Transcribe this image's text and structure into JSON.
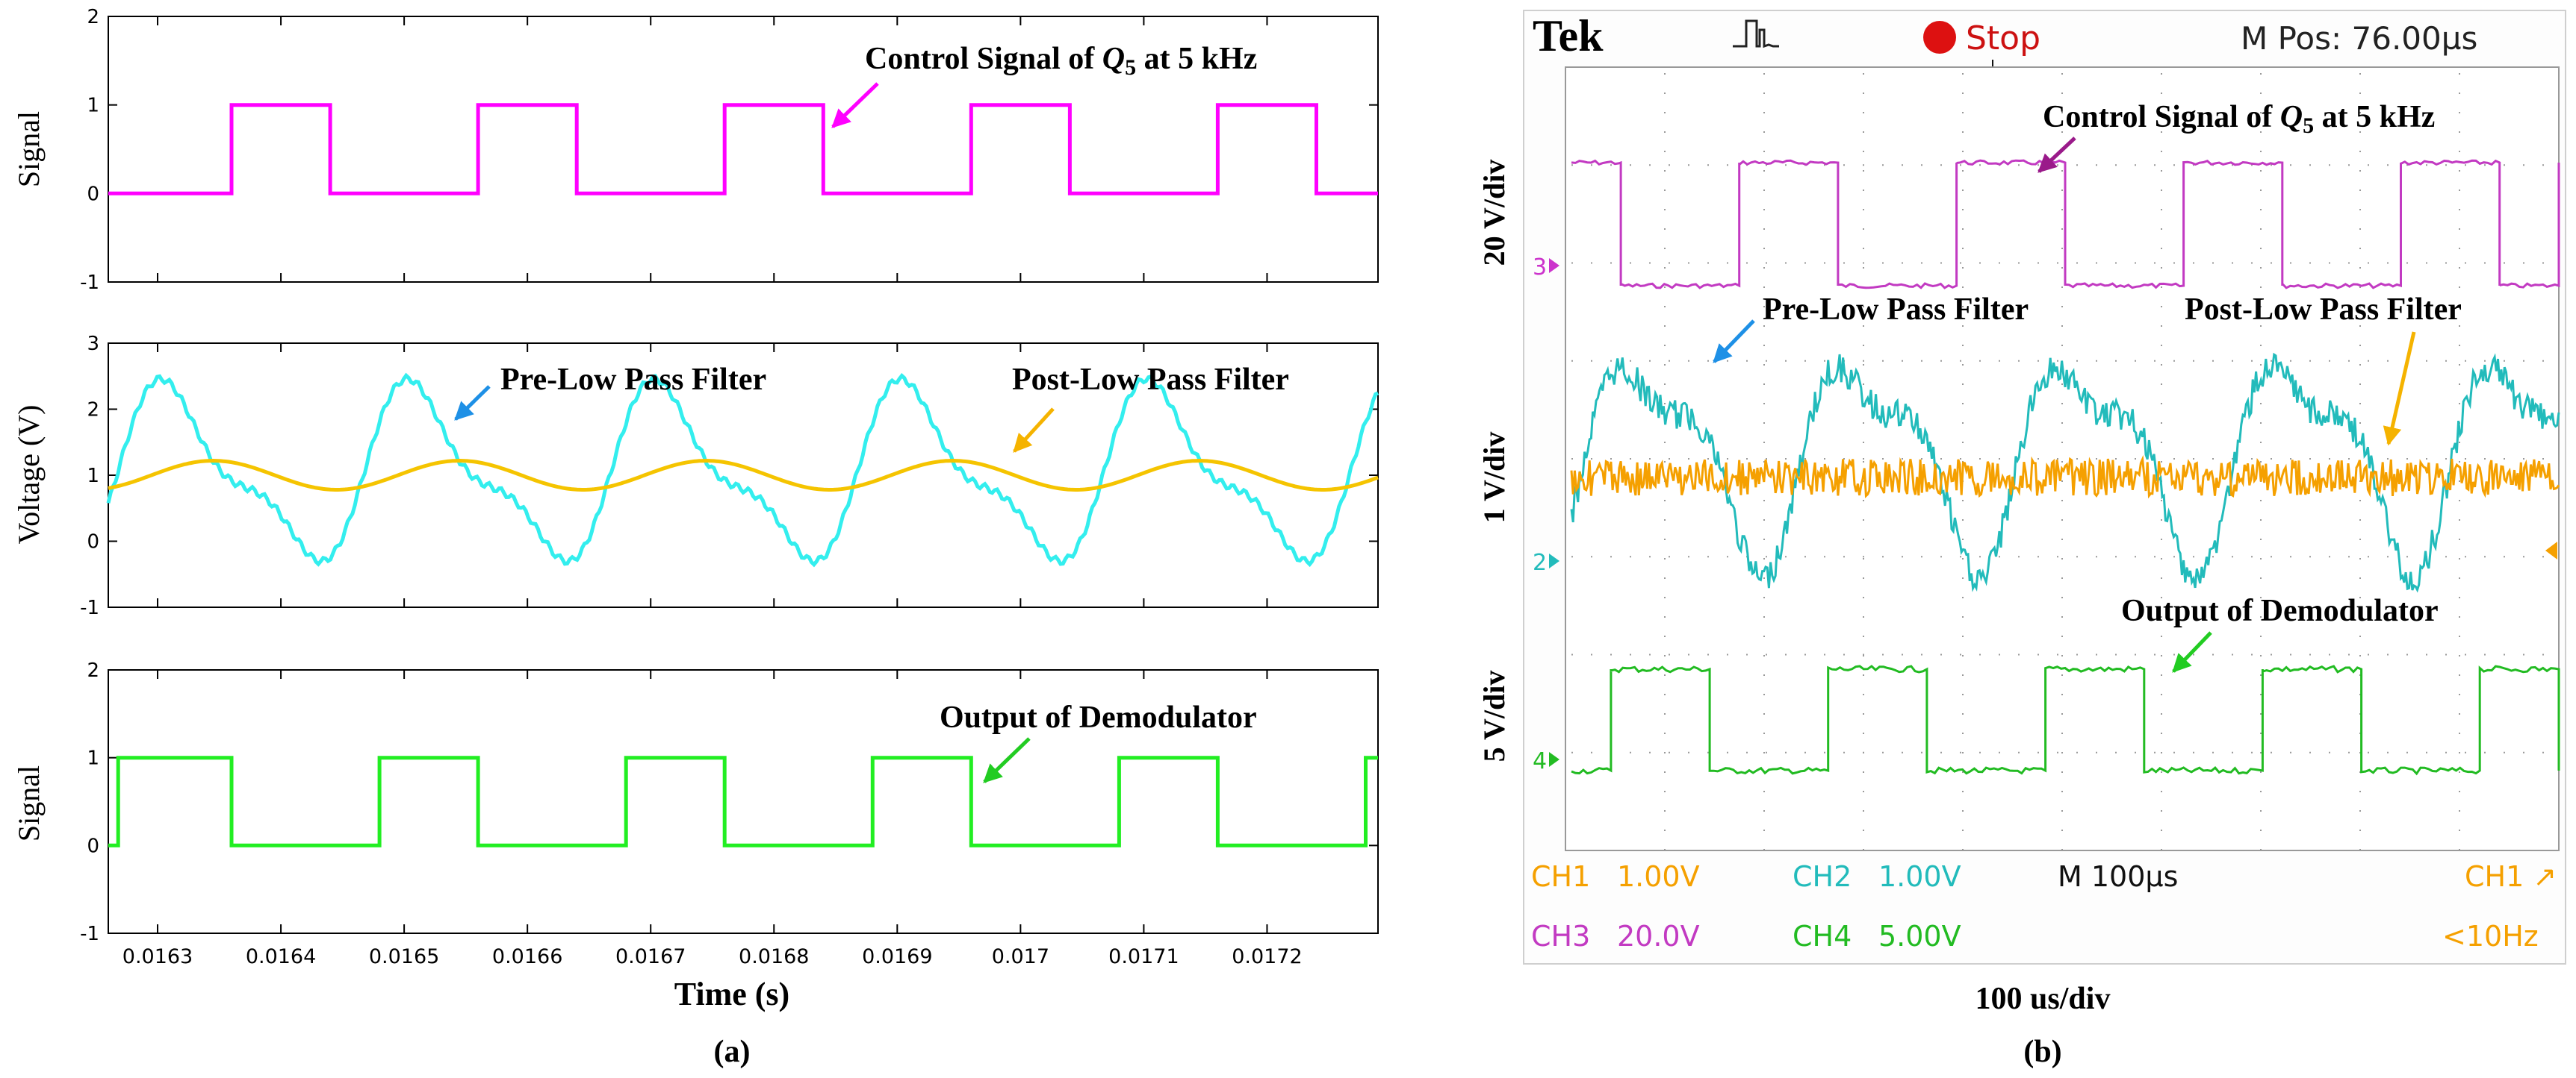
{
  "panel_a": {
    "label": "(a)",
    "xlabel": "Time (s)",
    "x_ticks": [
      "0.0163",
      "0.0164",
      "0.0165",
      "0.0166",
      "0.0167",
      "0.0168",
      "0.0169",
      "0.017",
      "0.0171",
      "0.0172"
    ]
  },
  "panel_b": {
    "label": "(b)",
    "xlabel": "100 us/div",
    "scope": {
      "brand": "Tek",
      "status": "Stop",
      "mpos": "M Pos: 76.00µs",
      "scale_labels": [
        "20 V/div",
        "1 V/div",
        "5 V/div"
      ],
      "channel_markers": [
        "3",
        "2",
        "4"
      ],
      "readout": {
        "ch1": "CH1",
        "ch1_val": "1.00V",
        "ch2": "CH2",
        "ch2_val": "1.00V",
        "ch3": "CH3",
        "ch3_val": "20.0V",
        "ch4": "CH4",
        "ch4_val": "5.00V",
        "timebase": "M 100µs",
        "trigger": "CH1 ↗",
        "freq": "<10Hz"
      }
    }
  },
  "chart_data": [
    {
      "type": "line",
      "title": "",
      "xlabel": "Time (s)",
      "ylabel": "Signal",
      "xlim": [
        0.01626,
        0.01729
      ],
      "ylim": [
        -1,
        2
      ],
      "yticks": [
        "-1",
        "0",
        "1",
        "2"
      ],
      "series": [
        {
          "name": "Control Signal of Q5 at 5 kHz",
          "color": "#ff00ff",
          "x": [
            0.01626,
            0.01636,
            0.01636,
            0.01644,
            0.01644,
            0.01656,
            0.01656,
            0.01664,
            0.01664,
            0.01676,
            0.01676,
            0.01684,
            0.01684,
            0.01696,
            0.01696,
            0.01704,
            0.01704,
            0.01716,
            0.01716,
            0.01724,
            0.01724,
            0.01729
          ],
          "y": [
            0,
            0,
            1,
            1,
            0,
            0,
            1,
            1,
            0,
            0,
            1,
            1,
            0,
            0,
            1,
            1,
            0,
            0,
            1,
            1,
            0,
            0
          ]
        }
      ],
      "annotations": [
        {
          "text": "Control Signal of Q5 at 5 kHz",
          "text_prefix": "Control Signal of ",
          "text_q": "Q",
          "text_sub": "5",
          "text_suffix": " at 5 kHz"
        }
      ]
    },
    {
      "type": "line",
      "xlabel": "Time (s)",
      "ylabel": "Voltage (V)",
      "xlim": [
        0.01626,
        0.01729
      ],
      "ylim": [
        -1,
        3
      ],
      "yticks": [
        "-1",
        "0",
        "1",
        "2",
        "3"
      ],
      "series": [
        {
          "name": "Pre-Low Pass Filter",
          "color": "#33eeee",
          "offset": 1.0,
          "amp1": 1.15,
          "amp2": 0.45,
          "period": 0.0002
        },
        {
          "name": "Post-Low Pass Filter",
          "color": "#f5c400",
          "offset": 1.0,
          "amp1": 0.22,
          "period": 0.0002
        }
      ],
      "annotations": [
        {
          "text": "Pre-Low Pass Filter"
        },
        {
          "text": "Post-Low Pass Filter"
        }
      ]
    },
    {
      "type": "line",
      "xlabel": "Time (s)",
      "ylabel": "Signal",
      "xlim": [
        0.01626,
        0.01729
      ],
      "ylim": [
        -1,
        2
      ],
      "yticks": [
        "-1",
        "0",
        "1",
        "2"
      ],
      "series": [
        {
          "name": "Output of Demodulator",
          "color": "#22ee22",
          "x": [
            0.01626,
            0.016268,
            0.016268,
            0.01636,
            0.01636,
            0.01648,
            0.01648,
            0.01656,
            0.01656,
            0.01668,
            0.01668,
            0.01676,
            0.01676,
            0.01688,
            0.01688,
            0.01696,
            0.01696,
            0.01708,
            0.01708,
            0.01716,
            0.01716,
            0.01728,
            0.01728,
            0.01729
          ],
          "y": [
            0,
            0,
            1,
            1,
            0,
            0,
            1,
            1,
            0,
            0,
            1,
            1,
            0,
            0,
            1,
            1,
            0,
            0,
            1,
            1,
            0,
            0,
            1,
            1
          ]
        }
      ],
      "annotations": [
        {
          "text": "Output of Demodulator"
        }
      ]
    }
  ]
}
